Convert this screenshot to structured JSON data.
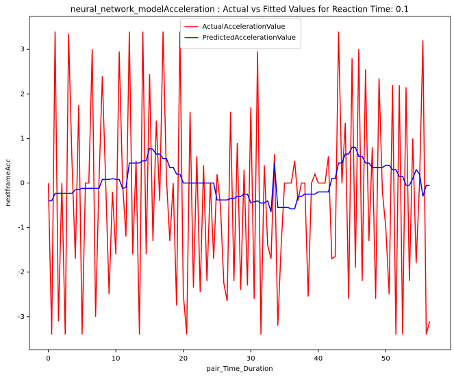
{
  "chart_data": {
    "type": "line",
    "title": "neural_network_modelAcceleration : Actual vs Fitted Values for Reaction Time: 0.1",
    "x_label": "pair_Time_Duration",
    "y_label": "nextframeAcc",
    "xlim": [
      -2.8,
      59.6
    ],
    "ylim": [
      -3.74,
      3.74
    ],
    "xticks": [
      0,
      10,
      20,
      30,
      40,
      50
    ],
    "yticks": [
      -3,
      -2,
      -1,
      0,
      1,
      2,
      3
    ],
    "legend": "upper center",
    "grid": false,
    "x": [
      0,
      0.5,
      1,
      1.5,
      2,
      2.5,
      3,
      3.5,
      4,
      4.5,
      5,
      5.5,
      6,
      6.5,
      7,
      7.5,
      8,
      8.5,
      9,
      9.5,
      10,
      10.5,
      11,
      11.5,
      12,
      12.5,
      13,
      13.5,
      14,
      14.5,
      15,
      15.5,
      16,
      16.5,
      17,
      17.5,
      18,
      18.5,
      19,
      19.5,
      20,
      20.5,
      21,
      21.5,
      22,
      22.5,
      23,
      23.5,
      24,
      24.5,
      25,
      25.5,
      26,
      26.5,
      27,
      27.5,
      28,
      28.5,
      29,
      29.5,
      30,
      30.5,
      31,
      31.5,
      32,
      32.5,
      33,
      33.5,
      34,
      34.5,
      35,
      35.5,
      36,
      36.5,
      37,
      37.5,
      38,
      38.5,
      39,
      39.5,
      40,
      40.5,
      41,
      41.5,
      42,
      42.5,
      43,
      43.5,
      44,
      44.5,
      45,
      45.5,
      46,
      46.5,
      47,
      47.5,
      48,
      48.5,
      49,
      49.5,
      50,
      50.5,
      51,
      51.5,
      52,
      52.5,
      53,
      53.5,
      54,
      54.5,
      55,
      55.5,
      56,
      56.5
    ],
    "series": [
      {
        "name": "ActualAccelerationValue",
        "color": "#ff0000",
        "values": [
          0,
          -3.4,
          3.4,
          -3.1,
          0,
          -3.4,
          3.35,
          0.5,
          -1.7,
          1.75,
          -3.4,
          0,
          0,
          3.0,
          -3.0,
          0,
          2.4,
          0,
          -2.5,
          -0.2,
          -1.6,
          2.95,
          0,
          -1.2,
          3.4,
          -1.6,
          0.5,
          -3.4,
          3.4,
          -1.6,
          2.45,
          -1.3,
          1.4,
          -0.4,
          3.4,
          0.1,
          -1.3,
          0,
          -2.75,
          3.4,
          -2.5,
          -3.4,
          1.6,
          -2.35,
          0.6,
          -2.45,
          0.4,
          -2.2,
          0,
          -1.7,
          0.2,
          -0.5,
          -2.25,
          -2.65,
          1.6,
          -2.2,
          0.9,
          -2.4,
          0.3,
          -2.3,
          1.7,
          -2.6,
          2.95,
          -3.4,
          0.4,
          -1.4,
          -1.7,
          0.65,
          -3.2,
          -1.4,
          0,
          0,
          0,
          0.5,
          -0.4,
          0,
          0,
          -2.55,
          0,
          0.2,
          0,
          0,
          0,
          0.6,
          -1.7,
          -1.65,
          3.4,
          0,
          1.35,
          -2.6,
          2.8,
          -1.9,
          3.0,
          -2.2,
          2.55,
          -1.3,
          0.8,
          -2.6,
          2.35,
          -0.2,
          -1.0,
          -2.5,
          2.2,
          -3.4,
          2.2,
          -3.4,
          2.15,
          -2.2,
          1.0,
          -1.8,
          0,
          3.2,
          -3.4,
          -3.1
        ]
      },
      {
        "name": "PredictedAccelerationValue",
        "color": "#0000ff",
        "values": [
          -0.4,
          -0.4,
          -0.23,
          -0.23,
          -0.23,
          -0.23,
          -0.23,
          -0.23,
          -0.15,
          -0.15,
          -0.12,
          -0.12,
          -0.12,
          -0.12,
          -0.12,
          -0.12,
          0.08,
          0.08,
          0.08,
          0.1,
          0.08,
          0.08,
          -0.12,
          -0.1,
          0.45,
          0.45,
          0.45,
          0.45,
          0.5,
          0.5,
          0.78,
          0.75,
          0.65,
          0.65,
          0.55,
          0.55,
          0.35,
          0.35,
          0.2,
          0.2,
          0,
          0,
          0,
          0,
          0,
          0,
          0,
          0,
          0,
          0,
          -0.38,
          -0.38,
          -0.38,
          -0.38,
          -0.35,
          -0.35,
          -0.3,
          -0.3,
          -0.25,
          -0.25,
          -0.45,
          -0.42,
          -0.4,
          -0.45,
          -0.45,
          -0.4,
          -0.65,
          0.45,
          -0.55,
          -0.55,
          -0.55,
          -0.55,
          -0.58,
          -0.58,
          -0.3,
          -0.3,
          -0.25,
          -0.25,
          -0.25,
          -0.25,
          -0.2,
          -0.2,
          -0.2,
          -0.2,
          0.1,
          0.1,
          0.45,
          0.45,
          0.65,
          0.65,
          0.8,
          0.8,
          0.6,
          0.6,
          0.45,
          0.45,
          0.35,
          0.35,
          0.35,
          0.35,
          0.4,
          0.4,
          0.3,
          0.3,
          0.15,
          0.15,
          -0.05,
          -0.05,
          0.1,
          0.3,
          0.2,
          -0.3,
          -0.05,
          -0.06
        ]
      }
    ]
  }
}
